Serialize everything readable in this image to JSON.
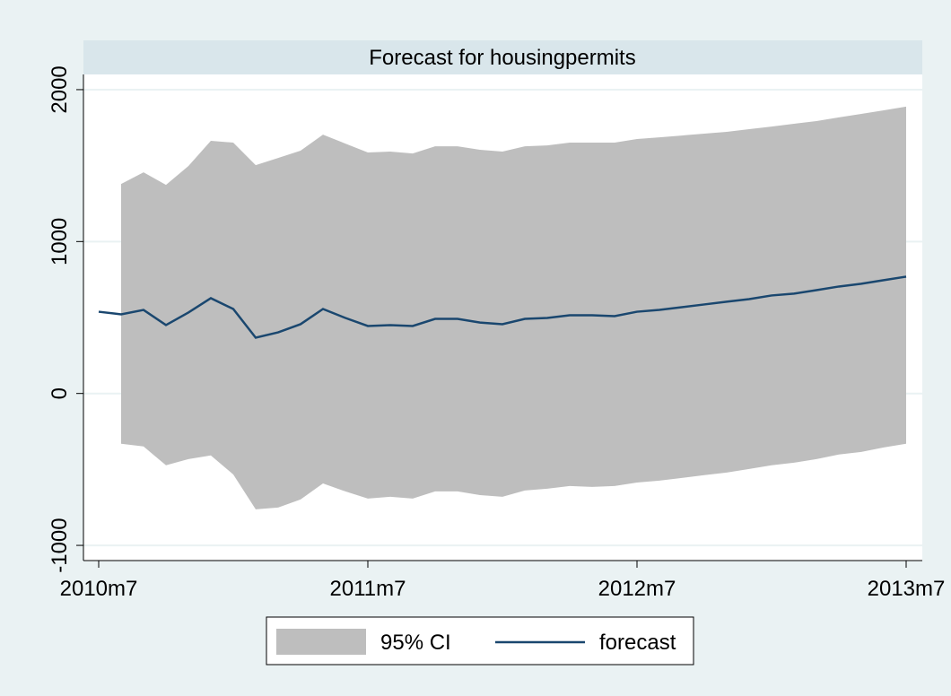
{
  "chart_data": {
    "type": "line",
    "title": "Forecast for housingpermits",
    "x": [
      "2010m7",
      "2010m8",
      "2010m9",
      "2010m10",
      "2010m11",
      "2010m12",
      "2011m1",
      "2011m2",
      "2011m3",
      "2011m4",
      "2011m5",
      "2011m6",
      "2011m7",
      "2011m8",
      "2011m9",
      "2011m10",
      "2011m11",
      "2011m12",
      "2012m1",
      "2012m2",
      "2012m3",
      "2012m4",
      "2012m5",
      "2012m6",
      "2012m7",
      "2012m8",
      "2012m9",
      "2012m10",
      "2012m11",
      "2012m12",
      "2013m1",
      "2013m2",
      "2013m3",
      "2013m4",
      "2013m5",
      "2013m6",
      "2013m7"
    ],
    "series": [
      {
        "name": "95% CI",
        "type": "area",
        "color": "#bebebe",
        "upper": [
          null,
          1379,
          1456,
          1373,
          1497,
          1663,
          1651,
          1503,
          1550,
          1598,
          1704,
          1645,
          1586,
          1592,
          1580,
          1627,
          1627,
          1604,
          1592,
          1627,
          1633,
          1651,
          1651,
          1651,
          1675,
          1686,
          1698,
          1710,
          1722,
          1740,
          1757,
          1775,
          1793,
          1817,
          1840,
          1864,
          1888
        ],
        "lower": [
          null,
          -331,
          -349,
          -473,
          -432,
          -408,
          -533,
          -763,
          -751,
          -698,
          -592,
          -645,
          -692,
          -680,
          -692,
          -645,
          -645,
          -669,
          -680,
          -639,
          -627,
          -609,
          -615,
          -609,
          -586,
          -574,
          -556,
          -538,
          -521,
          -497,
          -473,
          -456,
          -432,
          -402,
          -385,
          -355,
          -331
        ]
      },
      {
        "name": "forecast",
        "type": "line",
        "color": "#1a476f",
        "values": [
          538,
          521,
          550,
          450,
          533,
          627,
          556,
          367,
          402,
          456,
          556,
          497,
          444,
          450,
          444,
          491,
          491,
          467,
          456,
          491,
          497,
          515,
          515,
          509,
          538,
          550,
          568,
          586,
          604,
          621,
          645,
          657,
          680,
          704,
          722,
          746,
          769
        ]
      }
    ],
    "xticks": [
      "2010m7",
      "2011m7",
      "2012m7",
      "2013m7"
    ],
    "ylim": [
      -1100,
      2100
    ],
    "yticks": [
      -1000,
      0,
      1000,
      2000
    ],
    "grid": true
  }
}
